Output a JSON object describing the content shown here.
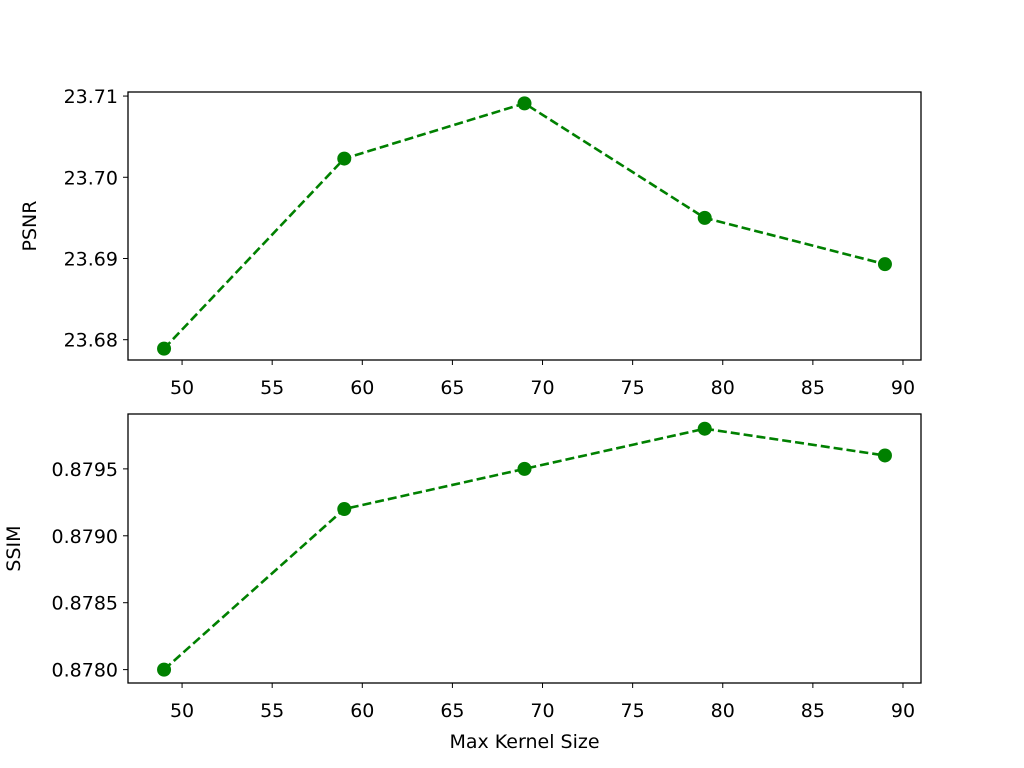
{
  "chart_data": [
    {
      "type": "line",
      "title": "",
      "xlabel": "",
      "ylabel": "PSNR",
      "xlim": [
        47,
        91
      ],
      "ylim": [
        23.6775,
        23.7105
      ],
      "xticks": [
        50,
        55,
        60,
        65,
        70,
        75,
        80,
        85,
        90
      ],
      "xtick_labels": [
        "50",
        "55",
        "60",
        "65",
        "70",
        "75",
        "80",
        "85",
        "90"
      ],
      "yticks": [
        23.68,
        23.69,
        23.7,
        23.71
      ],
      "ytick_labels": [
        "23.68",
        "23.69",
        "23.70",
        "23.71"
      ],
      "grid": false,
      "series": [
        {
          "x": [
            49,
            59,
            69,
            79,
            89
          ],
          "y": [
            23.6789,
            23.7023,
            23.7091,
            23.695,
            23.6893
          ],
          "color": "#008000",
          "line_style": "dashed",
          "marker": "circle"
        }
      ]
    },
    {
      "type": "line",
      "title": "",
      "xlabel": "Max Kernel Size",
      "ylabel": "SSIM",
      "xlim": [
        47,
        91
      ],
      "ylim": [
        0.8779,
        0.87991
      ],
      "xticks": [
        50,
        55,
        60,
        65,
        70,
        75,
        80,
        85,
        90
      ],
      "xtick_labels": [
        "50",
        "55",
        "60",
        "65",
        "70",
        "75",
        "80",
        "85",
        "90"
      ],
      "yticks": [
        0.878,
        0.8785,
        0.879,
        0.8795
      ],
      "ytick_labels": [
        "0.8780",
        "0.8785",
        "0.8790",
        "0.8795"
      ],
      "grid": false,
      "series": [
        {
          "x": [
            49,
            59,
            69,
            79,
            89
          ],
          "y": [
            0.878,
            0.8792,
            0.8795,
            0.8798,
            0.8796
          ],
          "color": "#008000",
          "line_style": "dashed",
          "marker": "circle"
        }
      ]
    }
  ]
}
